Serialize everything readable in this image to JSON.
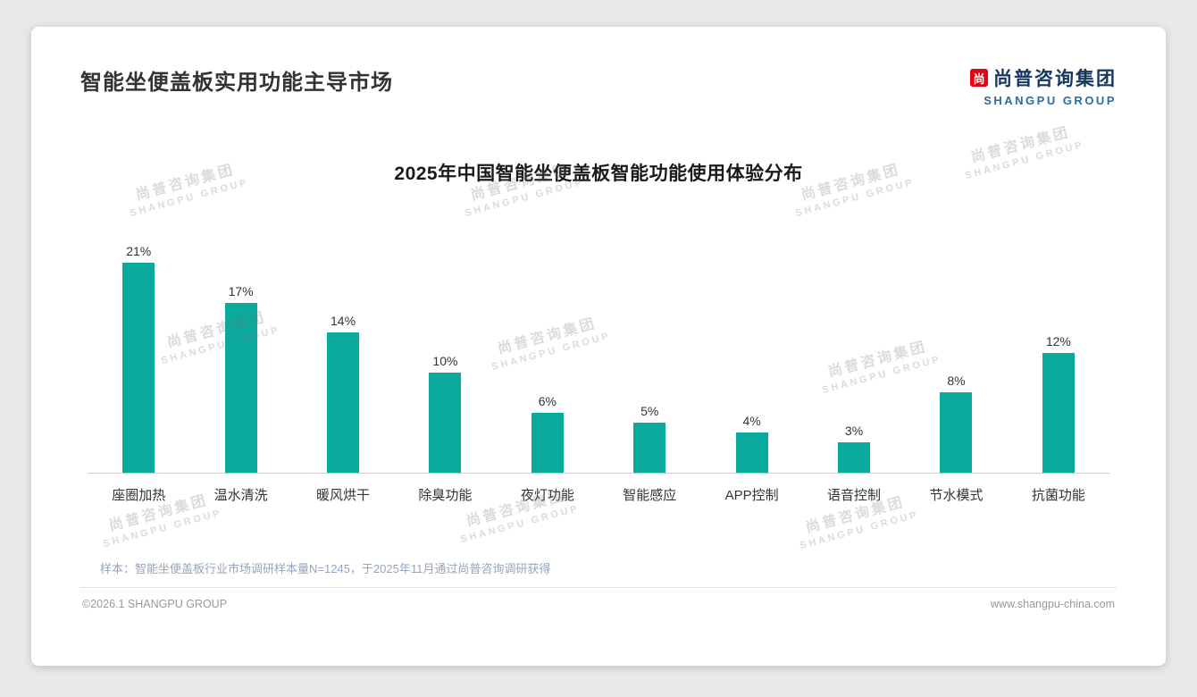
{
  "page": {
    "title": "智能坐便盖板实用功能主导市场",
    "logo": {
      "mark": "尚",
      "cn": "尚普咨询集团",
      "en": "SHANGPU GROUP"
    },
    "watermark": {
      "cn": "尚普咨询集团",
      "en": "SHANGPU GROUP"
    },
    "footnote": "样本：智能坐便盖板行业市场调研样本量N=1245，于2025年11月通过尚普咨询调研获得",
    "footer_left": "©2026.1 SHANGPU GROUP",
    "footer_right": "www.shangpu-china.com"
  },
  "chart_data": {
    "type": "bar",
    "title": "2025年中国智能坐便盖板智能功能使用体验分布",
    "categories": [
      "座圈加热",
      "温水清洗",
      "暖风烘干",
      "除臭功能",
      "夜灯功能",
      "智能感应",
      "APP控制",
      "语音控制",
      "节水模式",
      "抗菌功能"
    ],
    "values": [
      21,
      17,
      14,
      10,
      6,
      5,
      4,
      3,
      8,
      12
    ],
    "data_labels": [
      "21%",
      "17%",
      "14%",
      "10%",
      "6%",
      "5%",
      "4%",
      "3%",
      "8%",
      "12%"
    ],
    "unit": "%",
    "bar_color": "#0aab9e",
    "ylim": [
      0,
      24
    ],
    "grid": false,
    "legend": false
  }
}
